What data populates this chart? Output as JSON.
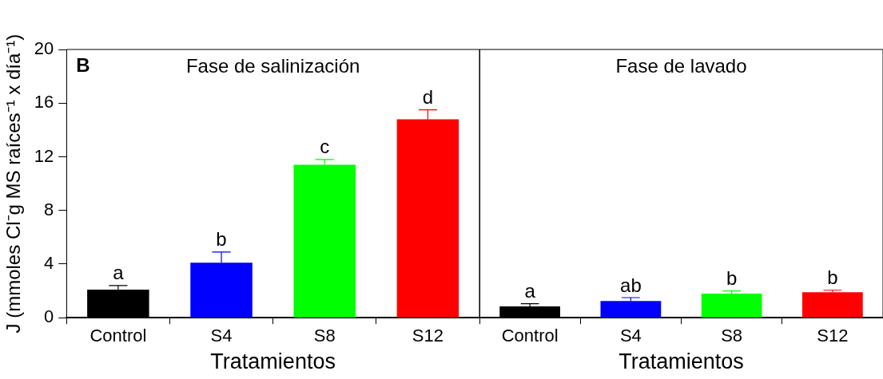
{
  "chart_data": [
    {
      "type": "bar",
      "title": "Fase de salinización",
      "xlabel": "Tratamientos",
      "ylabel": "J (mmoles Cl⁻g MS raíces⁻¹ x día⁻¹)",
      "categories": [
        "Control",
        "S4",
        "S8",
        "S12"
      ],
      "values": [
        2.1,
        4.1,
        11.4,
        14.8
      ],
      "errors": [
        0.3,
        0.8,
        0.4,
        0.7
      ],
      "colors": [
        "#000000",
        "#0000ff",
        "#00ff00",
        "#ff0000"
      ],
      "ylim": [
        0,
        20
      ],
      "yticks": [
        0,
        4,
        8,
        12,
        16,
        20
      ],
      "grid": false,
      "legend": false,
      "annotations": [
        "B",
        {
          "text": "a",
          "x": "Control",
          "y": 2.4
        },
        {
          "text": "b",
          "x": "S4",
          "y": 4.9
        },
        {
          "text": "c",
          "x": "S8",
          "y": 11.8
        },
        {
          "text": "d",
          "x": "S12",
          "y": 15.5
        }
      ]
    },
    {
      "type": "bar",
      "title": "Fase de lavado",
      "xlabel": "Tratamientos",
      "categories": [
        "Control",
        "S4",
        "S8",
        "S12"
      ],
      "values": [
        0.85,
        1.25,
        1.8,
        1.9
      ],
      "errors": [
        0.2,
        0.25,
        0.2,
        0.15
      ],
      "colors": [
        "#000000",
        "#0000ff",
        "#00ff00",
        "#ff0000"
      ],
      "ylim": [
        0,
        20
      ],
      "yticks": [
        0,
        4,
        8,
        12,
        16,
        20
      ],
      "grid": false,
      "legend": false,
      "tick_labels": "x",
      "annotations": [
        {
          "text": "a",
          "x": "Control",
          "y": 1.05
        },
        {
          "text": "ab",
          "x": "S4",
          "y": 1.5
        },
        {
          "text": "b",
          "x": "S8",
          "y": 2.0
        },
        {
          "text": "b",
          "x": "S12",
          "y": 2.05
        }
      ]
    }
  ]
}
